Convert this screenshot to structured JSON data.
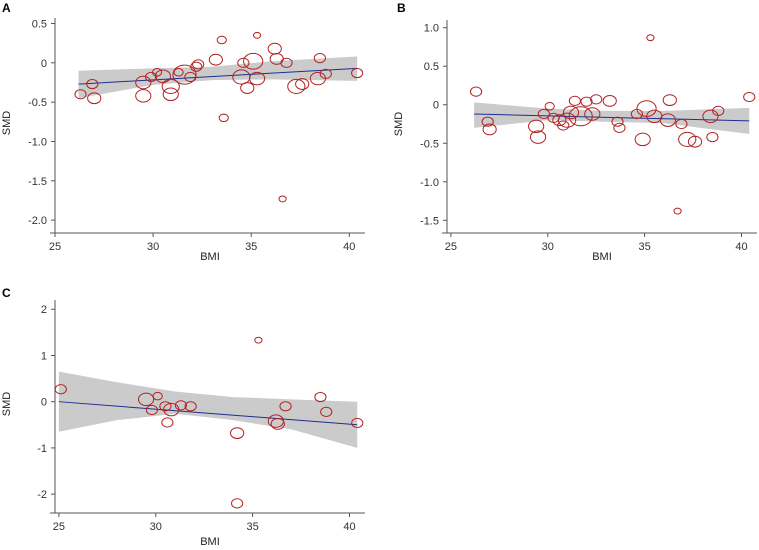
{
  "chart_data": [
    {
      "type": "scatter",
      "panel": "A",
      "title": "",
      "xlabel": "BMI",
      "ylabel": "SMD",
      "xlim": [
        25,
        40.8
      ],
      "ylim": [
        -2.1,
        0.57
      ],
      "xticks": [
        25,
        30,
        35,
        40
      ],
      "yticks": [
        0.5,
        0,
        -0.5,
        -1.0,
        -1.5,
        -2.0
      ],
      "ytick_labels": [
        "0.5",
        "0",
        "-0.5",
        "-1.0",
        "-1.5",
        "-2.0"
      ],
      "fit": {
        "x": [
          26.2,
          40.4
        ],
        "y": [
          -0.27,
          -0.07
        ]
      },
      "ci_band": {
        "x": [
          26.2,
          30,
          33,
          36,
          40.4
        ],
        "upper": [
          -0.1,
          -0.07,
          -0.05,
          0.02,
          0.08
        ],
        "lower": [
          -0.45,
          -0.28,
          -0.22,
          -0.21,
          -0.23
        ]
      },
      "points": [
        {
          "x": 26.3,
          "y": -0.4,
          "w": 2
        },
        {
          "x": 26.9,
          "y": -0.27,
          "w": 2
        },
        {
          "x": 27.0,
          "y": -0.45,
          "w": 2.5
        },
        {
          "x": 29.5,
          "y": -0.25,
          "w": 3
        },
        {
          "x": 29.5,
          "y": -0.42,
          "w": 3
        },
        {
          "x": 29.9,
          "y": -0.18,
          "w": 2
        },
        {
          "x": 30.2,
          "y": -0.12,
          "w": 1.5
        },
        {
          "x": 30.5,
          "y": -0.17,
          "w": 3
        },
        {
          "x": 30.9,
          "y": -0.4,
          "w": 3
        },
        {
          "x": 30.9,
          "y": -0.3,
          "w": 3.5
        },
        {
          "x": 31.3,
          "y": -0.12,
          "w": 1.5
        },
        {
          "x": 31.6,
          "y": -0.15,
          "w": 5
        },
        {
          "x": 31.9,
          "y": -0.18,
          "w": 2
        },
        {
          "x": 32.2,
          "y": -0.05,
          "w": 2
        },
        {
          "x": 32.3,
          "y": -0.02,
          "w": 2
        },
        {
          "x": 33.2,
          "y": 0.04,
          "w": 2.5
        },
        {
          "x": 33.5,
          "y": 0.29,
          "w": 1.5
        },
        {
          "x": 33.6,
          "y": -0.7,
          "w": 1.5
        },
        {
          "x": 34.5,
          "y": -0.18,
          "w": 3.5
        },
        {
          "x": 34.6,
          "y": 0.0,
          "w": 2
        },
        {
          "x": 34.8,
          "y": -0.32,
          "w": 2.5
        },
        {
          "x": 35.1,
          "y": 0.02,
          "w": 4
        },
        {
          "x": 35.3,
          "y": 0.35,
          "w": 1
        },
        {
          "x": 35.3,
          "y": -0.2,
          "w": 3
        },
        {
          "x": 36.2,
          "y": 0.18,
          "w": 2.5
        },
        {
          "x": 36.3,
          "y": 0.05,
          "w": 2.5
        },
        {
          "x": 36.6,
          "y": -1.73,
          "w": 1
        },
        {
          "x": 36.8,
          "y": 0.0,
          "w": 2
        },
        {
          "x": 37.3,
          "y": -0.3,
          "w": 3.5
        },
        {
          "x": 37.6,
          "y": -0.27,
          "w": 2.5
        },
        {
          "x": 38.4,
          "y": -0.2,
          "w": 3
        },
        {
          "x": 38.5,
          "y": 0.06,
          "w": 2
        },
        {
          "x": 38.8,
          "y": -0.14,
          "w": 2
        },
        {
          "x": 40.4,
          "y": -0.13,
          "w": 2
        }
      ]
    },
    {
      "type": "scatter",
      "panel": "B",
      "title": "",
      "xlabel": "BMI",
      "ylabel": "SMD",
      "xlim": [
        24.8,
        40.8
      ],
      "ylim": [
        -1.6,
        1.1
      ],
      "xticks": [
        25,
        30,
        35,
        40
      ],
      "yticks": [
        1.0,
        0.5,
        0,
        -0.5,
        -1.0,
        -1.5
      ],
      "ytick_labels": [
        "1.0",
        "0.5",
        "0",
        "-0.5",
        "-1.0",
        "-1.5"
      ],
      "fit": {
        "x": [
          26.2,
          40.4
        ],
        "y": [
          -0.12,
          -0.21
        ]
      },
      "ci_band": {
        "x": [
          26.2,
          30,
          33,
          36,
          40.4
        ],
        "upper": [
          0.03,
          -0.05,
          -0.08,
          -0.08,
          -0.04
        ],
        "lower": [
          -0.3,
          -0.2,
          -0.22,
          -0.24,
          -0.38
        ]
      },
      "points": [
        {
          "x": 26.3,
          "y": 0.17,
          "w": 2
        },
        {
          "x": 26.9,
          "y": -0.22,
          "w": 2
        },
        {
          "x": 27.0,
          "y": -0.32,
          "w": 2.5
        },
        {
          "x": 29.4,
          "y": -0.28,
          "w": 3
        },
        {
          "x": 29.5,
          "y": -0.42,
          "w": 3
        },
        {
          "x": 29.8,
          "y": -0.12,
          "w": 2
        },
        {
          "x": 30.1,
          "y": -0.02,
          "w": 1.5
        },
        {
          "x": 30.3,
          "y": -0.17,
          "w": 2
        },
        {
          "x": 30.6,
          "y": -0.2,
          "w": 2.5
        },
        {
          "x": 30.8,
          "y": -0.27,
          "w": 2
        },
        {
          "x": 31.0,
          "y": -0.2,
          "w": 3.5
        },
        {
          "x": 31.2,
          "y": -0.1,
          "w": 3
        },
        {
          "x": 31.4,
          "y": 0.05,
          "w": 2
        },
        {
          "x": 31.7,
          "y": -0.15,
          "w": 5
        },
        {
          "x": 32.0,
          "y": 0.04,
          "w": 2
        },
        {
          "x": 32.3,
          "y": -0.12,
          "w": 3
        },
        {
          "x": 32.5,
          "y": 0.07,
          "w": 2
        },
        {
          "x": 33.2,
          "y": 0.05,
          "w": 2.5
        },
        {
          "x": 33.6,
          "y": -0.22,
          "w": 2
        },
        {
          "x": 33.7,
          "y": -0.3,
          "w": 2
        },
        {
          "x": 34.6,
          "y": -0.12,
          "w": 2
        },
        {
          "x": 34.9,
          "y": -0.45,
          "w": 3
        },
        {
          "x": 35.1,
          "y": -0.05,
          "w": 4
        },
        {
          "x": 35.3,
          "y": 0.87,
          "w": 1
        },
        {
          "x": 35.5,
          "y": -0.15,
          "w": 3
        },
        {
          "x": 36.2,
          "y": -0.2,
          "w": 3
        },
        {
          "x": 36.3,
          "y": 0.06,
          "w": 2.5
        },
        {
          "x": 36.7,
          "y": -1.38,
          "w": 1
        },
        {
          "x": 36.9,
          "y": -0.25,
          "w": 2
        },
        {
          "x": 37.2,
          "y": -0.45,
          "w": 3.5
        },
        {
          "x": 37.6,
          "y": -0.48,
          "w": 2.5
        },
        {
          "x": 38.4,
          "y": -0.15,
          "w": 3
        },
        {
          "x": 38.5,
          "y": -0.42,
          "w": 2
        },
        {
          "x": 38.8,
          "y": -0.08,
          "w": 2
        },
        {
          "x": 40.4,
          "y": 0.1,
          "w": 2
        }
      ]
    },
    {
      "type": "scatter",
      "panel": "C",
      "title": "",
      "xlabel": "BMI",
      "ylabel": "SMD",
      "xlim": [
        24.8,
        40.8
      ],
      "ylim": [
        -2.3,
        2.2
      ],
      "xticks": [
        25,
        30,
        35,
        40
      ],
      "yticks": [
        2,
        1,
        0,
        -1,
        -2
      ],
      "ytick_labels": [
        "2",
        "1",
        "0",
        "-1",
        "-2"
      ],
      "fit": {
        "x": [
          25.0,
          40.4
        ],
        "y": [
          0.0,
          -0.5
        ]
      },
      "ci_band": {
        "x": [
          25.0,
          28,
          31,
          34,
          37,
          40.4
        ],
        "upper": [
          0.65,
          0.42,
          0.22,
          0.1,
          0.05,
          0.0
        ],
        "lower": [
          -0.65,
          -0.4,
          -0.26,
          -0.4,
          -0.6,
          -1.0
        ]
      },
      "points": [
        {
          "x": 25.1,
          "y": 0.27,
          "w": 2
        },
        {
          "x": 29.5,
          "y": 0.05,
          "w": 3
        },
        {
          "x": 29.8,
          "y": -0.18,
          "w": 2
        },
        {
          "x": 30.1,
          "y": 0.12,
          "w": 1.5
        },
        {
          "x": 30.5,
          "y": -0.1,
          "w": 2
        },
        {
          "x": 30.6,
          "y": -0.45,
          "w": 2
        },
        {
          "x": 30.8,
          "y": -0.17,
          "w": 3
        },
        {
          "x": 31.3,
          "y": -0.08,
          "w": 2
        },
        {
          "x": 31.8,
          "y": -0.1,
          "w": 2
        },
        {
          "x": 34.2,
          "y": -0.68,
          "w": 2.5
        },
        {
          "x": 34.2,
          "y": -2.2,
          "w": 2
        },
        {
          "x": 35.3,
          "y": 1.33,
          "w": 1
        },
        {
          "x": 36.2,
          "y": -0.42,
          "w": 3
        },
        {
          "x": 36.3,
          "y": -0.48,
          "w": 2.5
        },
        {
          "x": 36.7,
          "y": -0.1,
          "w": 2
        },
        {
          "x": 38.5,
          "y": 0.1,
          "w": 2
        },
        {
          "x": 38.8,
          "y": -0.22,
          "w": 2
        },
        {
          "x": 40.4,
          "y": -0.46,
          "w": 2
        }
      ]
    }
  ],
  "colors": {
    "point": "#b22222",
    "fit": "#1f2f8f",
    "band": "#c8c8c8"
  }
}
